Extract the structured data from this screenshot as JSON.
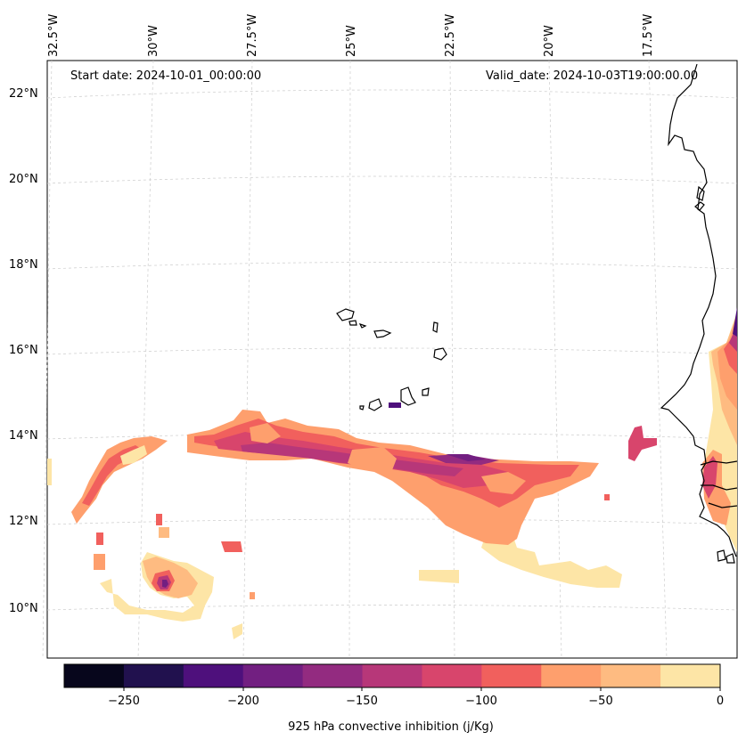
{
  "header": {
    "start_date": "Start date: 2024-10-01_00:00:00",
    "valid_date": "Valid_date: 2024-10-03T19:00:00.00"
  },
  "axes": {
    "lon_labels": [
      "32.5°W",
      "30°W",
      "27.5°W",
      "25°W",
      "22.5°W",
      "20°W",
      "17.5°W"
    ],
    "lat_labels": [
      "22°N",
      "20°N",
      "18°N",
      "16°N",
      "14°N",
      "12°N",
      "10°N"
    ]
  },
  "colorbar": {
    "label": "925 hPa convective inhibition (j/Kg)",
    "ticks": [
      "−250",
      "−200",
      "−150",
      "−100",
      "−50",
      "0"
    ],
    "levels": [
      -275,
      -250,
      -225,
      -200,
      -175,
      -150,
      -125,
      -100,
      -75,
      -50,
      -25,
      0
    ],
    "colors": [
      "#07061c",
      "#21114e",
      "#4e107c",
      "#721f81",
      "#932b80",
      "#b73779",
      "#d8456c",
      "#f1605d",
      "#fe9f6d",
      "#febb81",
      "#fde5a6"
    ]
  },
  "chart_data": {
    "type": "map-contourf",
    "variable": "925 hPa convective inhibition",
    "units": "j/Kg",
    "region": {
      "lon_range_deg": [
        -33,
        -16.5
      ],
      "lat_range_deg": [
        9,
        22.5
      ]
    },
    "contour_levels": [
      -275,
      -250,
      -225,
      -200,
      -175,
      -150,
      -125,
      -100,
      -75,
      -50,
      -25,
      0
    ],
    "features": [
      {
        "name": "band-west-cabo-verde",
        "approx_min": -175,
        "typical": -100
      },
      {
        "name": "cyclone-core",
        "lat": 10.6,
        "lon": -29.5,
        "approx_min": -150
      },
      {
        "name": "west-africa-coast",
        "approx_min": -225,
        "typical": -50
      }
    ]
  }
}
